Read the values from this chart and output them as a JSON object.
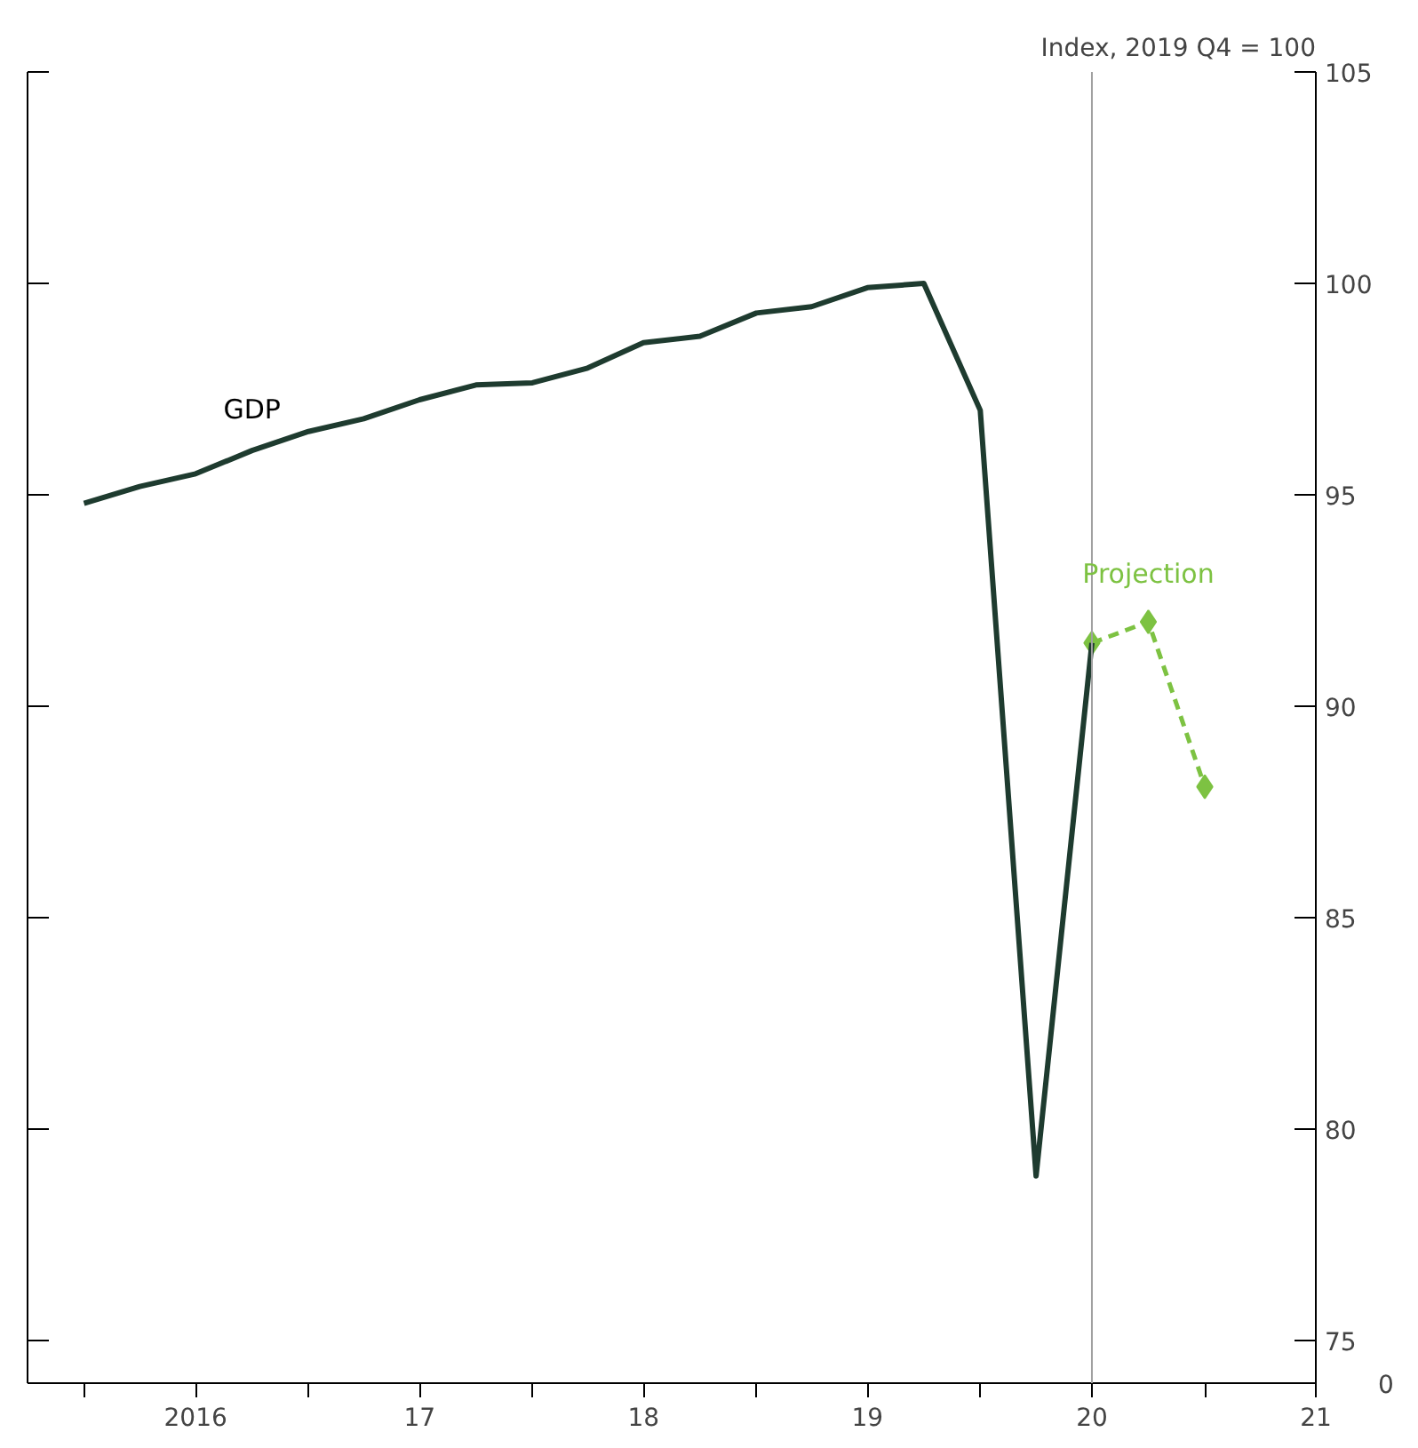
{
  "chart_data": {
    "type": "line",
    "ylabel": "Index, 2019 Q4 = 100",
    "x": [
      "2016-01",
      "2016-04",
      "2016-07",
      "2016-10",
      "2017-01",
      "2017-04",
      "2017-07",
      "2017-10",
      "2018-01",
      "2018-04",
      "2018-07",
      "2018-10",
      "2019-01",
      "2019-04",
      "2019-07",
      "2019-10",
      "2020-01",
      "2020-04",
      "2020-07"
    ],
    "series": [
      {
        "name": "GDP",
        "color": "#1e3b2f",
        "values": [
          94.8,
          95.2,
          95.5,
          96.05,
          96.5,
          96.8,
          97.25,
          97.6,
          97.65,
          98.0,
          98.6,
          98.75,
          99.3,
          99.45,
          99.9,
          100,
          97.0,
          78.9,
          91.5
        ],
        "marker": "none",
        "line_style": "solid"
      },
      {
        "name": "Projection",
        "color": "#7dc242",
        "x": [
          "2020-07",
          "2020-10",
          "2021-01"
        ],
        "values": [
          91.5,
          92.0,
          88.1
        ],
        "marker": "diamond",
        "line_style": "dashed"
      }
    ],
    "xlim": [
      "2015-10",
      "2021-07"
    ],
    "xticks": [
      {
        "value": "2016-01",
        "label": null
      },
      {
        "value": "2016-07",
        "label": "2016"
      },
      {
        "value": "2017-01",
        "label": null
      },
      {
        "value": "2017-07",
        "label": "17"
      },
      {
        "value": "2018-01",
        "label": null
      },
      {
        "value": "2018-07",
        "label": "18"
      },
      {
        "value": "2019-01",
        "label": null
      },
      {
        "value": "2019-07",
        "label": "19"
      },
      {
        "value": "2020-01",
        "label": null
      },
      {
        "value": "2020-07",
        "label": "20"
      },
      {
        "value": "2021-01",
        "label": null
      },
      {
        "value": "2021-07",
        "label": "21"
      }
    ],
    "ylim": [
      74,
      105
    ],
    "yticks": [
      75,
      80,
      85,
      90,
      95,
      100,
      105
    ],
    "annotations": [
      "0"
    ],
    "ref_lines": [
      {
        "axis": "x",
        "value": "2020-07",
        "label": null,
        "color": "#a0a0a0"
      }
    ],
    "grid": false
  }
}
